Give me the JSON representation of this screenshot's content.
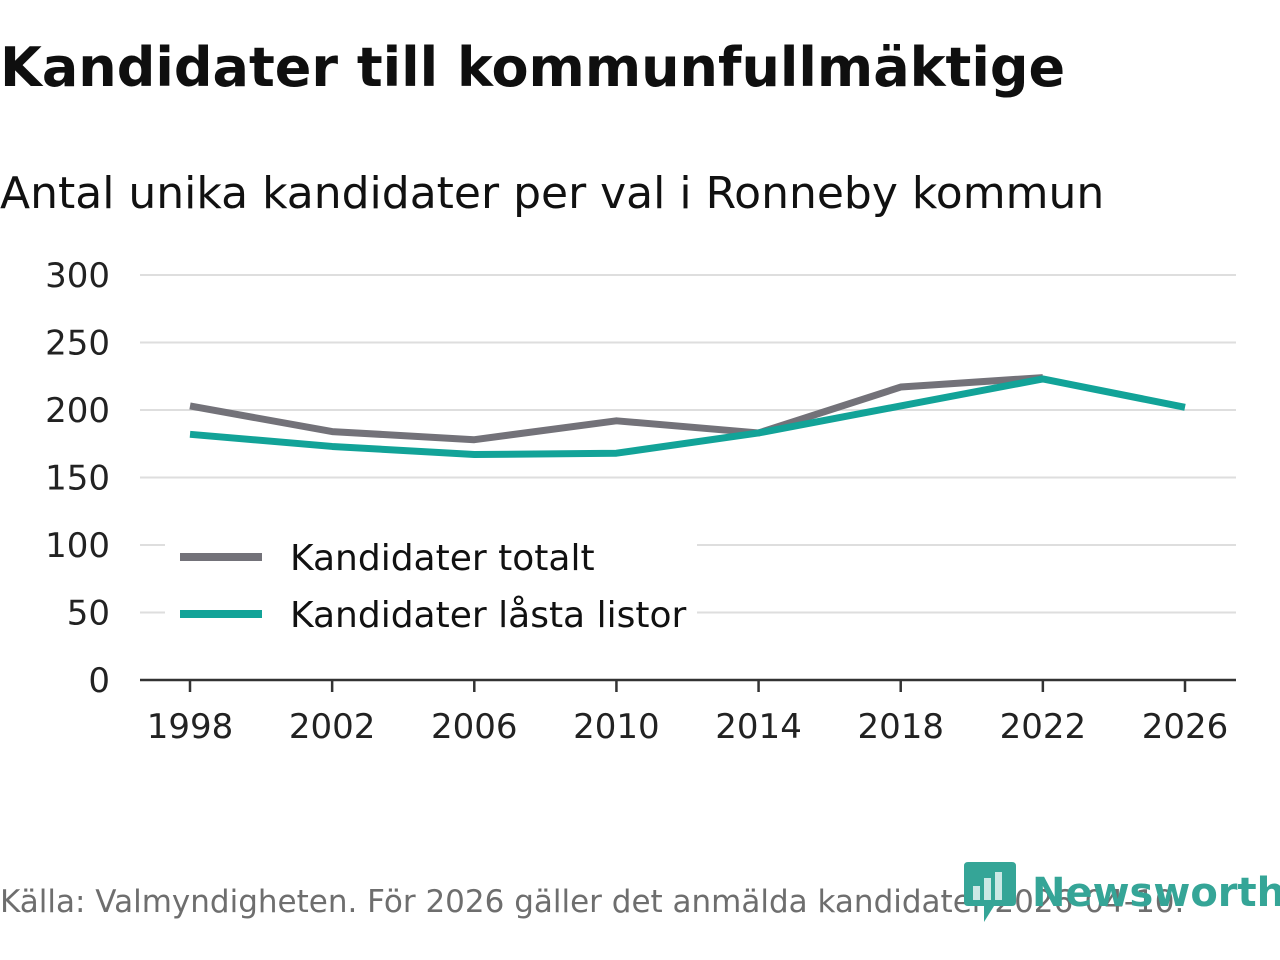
{
  "title": "Kandidater till kommunfullmäktige",
  "subtitle": "Antal unika kandidater per val i Ronneby kommun",
  "source": "Källa: Valmyndigheten. För 2026 gäller det anmälda kandidater 2026-04-10.",
  "brand": {
    "name": "Newsworthy",
    "icon": "newsworthy-logo-icon",
    "color": "#35a597"
  },
  "chart_data": {
    "type": "line",
    "title": "Kandidater till kommunfullmäktige",
    "subtitle": "Antal unika kandidater per val i Ronneby kommun",
    "xlabel": "",
    "ylabel": "",
    "x": [
      "1998",
      "2002",
      "2006",
      "2010",
      "2014",
      "2018",
      "2022",
      "2026"
    ],
    "ylim": [
      0,
      300
    ],
    "yticks": [
      "0",
      "50",
      "100",
      "150",
      "200",
      "250",
      "300"
    ],
    "grid": true,
    "legend_position": "bottom-left",
    "series": [
      {
        "name": "Kandidater totalt",
        "color": "#737279",
        "values": [
          203,
          184,
          178,
          192,
          183,
          217,
          224,
          null
        ]
      },
      {
        "name": "Kandidater låsta listor",
        "color": "#12a398",
        "values": [
          182,
          173,
          167,
          168,
          183,
          203,
          223,
          202
        ]
      }
    ]
  }
}
